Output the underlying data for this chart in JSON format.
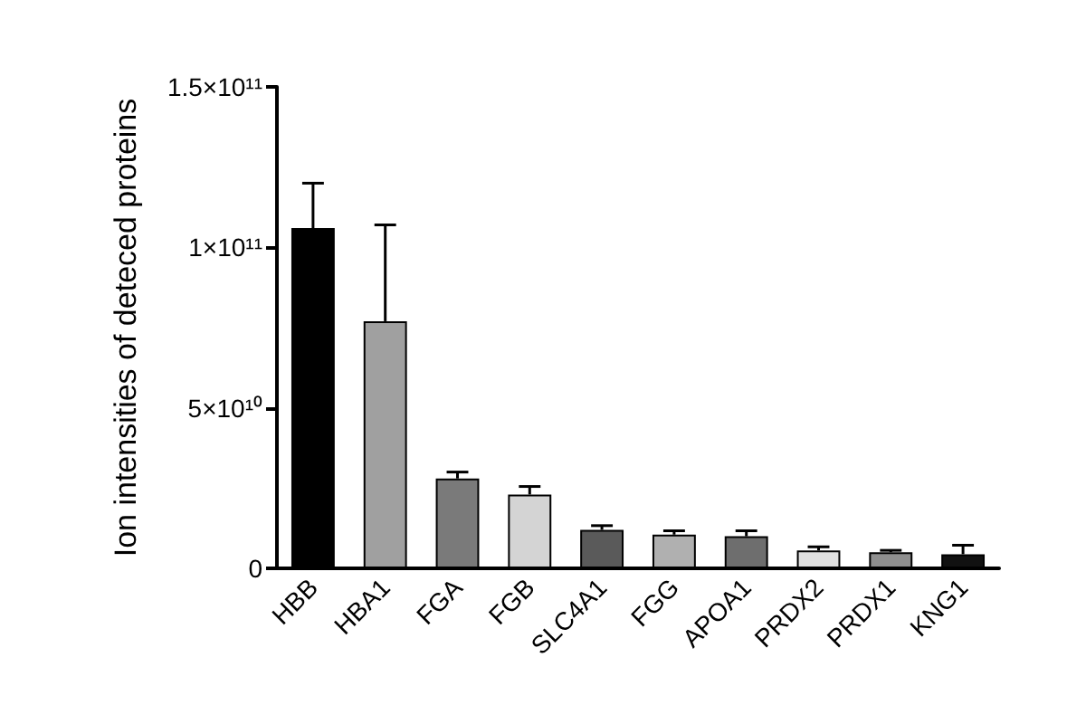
{
  "chart_data": {
    "type": "bar",
    "ylabel": "Ion intensities of deteced proteins",
    "categories": [
      "HBB",
      "HBA1",
      "FGA",
      "FGB",
      "SLC4A1",
      "FGG",
      "APOA1",
      "PRDX2",
      "PRDX1",
      "KNG1"
    ],
    "values": [
      106000000000.0,
      77000000000.0,
      28000000000.0,
      23000000000.0,
      12000000000.0,
      10500000000.0,
      10000000000.0,
      5600000000.0,
      5000000000.0,
      4400000000.0
    ],
    "errors": [
      [
        106000000000.0,
        120000000000.0
      ],
      [
        77000000000.0,
        107000000000.0
      ],
      [
        28000000000.0,
        30000000000.0
      ],
      [
        23000000000.0,
        25500000000.0
      ],
      [
        12000000000.0,
        13300000000.0
      ],
      [
        10500000000.0,
        11700000000.0
      ],
      [
        10000000000.0,
        11700000000.0
      ],
      [
        5600000000.0,
        6700000000.0
      ],
      [
        5000000000.0,
        5600000000.0
      ],
      [
        4400000000.0,
        7200000000.0
      ]
    ],
    "colors": [
      "#000000",
      "#a0a0a0",
      "#7a7a7a",
      "#d4d4d4",
      "#5a5a5a",
      "#b0b0b0",
      "#6e6e6e",
      "#e0e0e0",
      "#8f8f8f",
      "#111111"
    ],
    "ylim": [
      0,
      150000000000.0
    ],
    "yticks": [
      0,
      {
        "value": 50000000000.0,
        "label": "5×10¹⁰"
      },
      {
        "value": 100000000000.0,
        "label": "1×10¹¹"
      },
      {
        "value": 150000000000.0,
        "label": "1.5×10¹¹"
      }
    ],
    "grid": false
  }
}
